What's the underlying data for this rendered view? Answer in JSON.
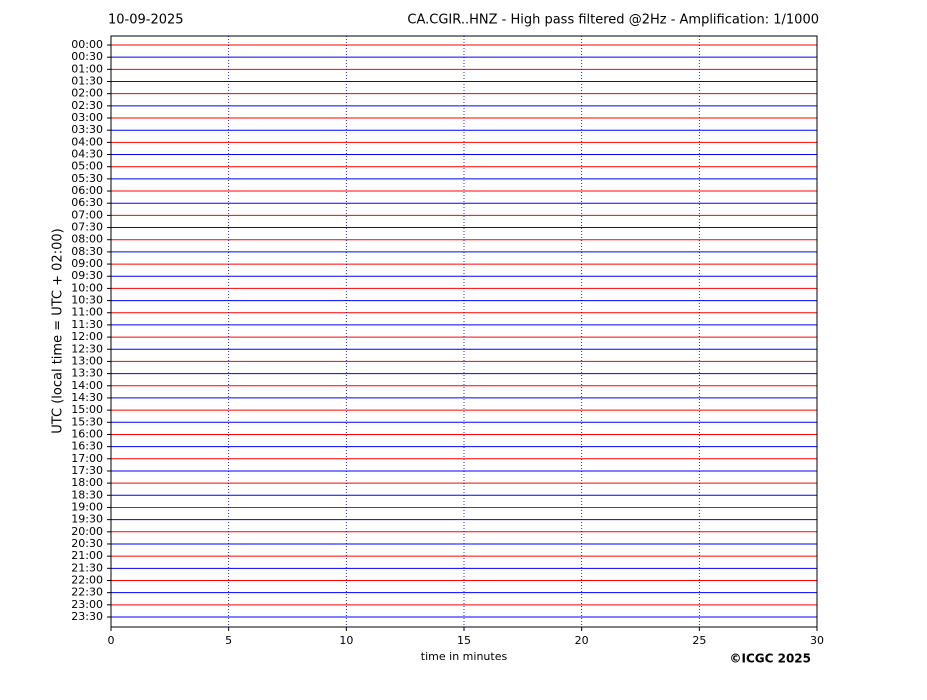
{
  "chart_data": {
    "type": "helicorder",
    "date": "10-09-2025",
    "title": "CA.CGIR..HNZ - High pass filtered @2Hz - Amplification: 1/1000",
    "ylabel": "UTC (local time = UTC + 02:00)",
    "xlabel": "time in minutes",
    "categories": [
      "00:00",
      "00:30",
      "01:00",
      "01:30",
      "02:00",
      "02:30",
      "03:00",
      "03:30",
      "04:00",
      "04:30",
      "05:00",
      "05:30",
      "06:00",
      "06:30",
      "07:00",
      "07:30",
      "08:00",
      "08:30",
      "09:00",
      "09:30",
      "10:00",
      "10:30",
      "11:00",
      "11:30",
      "12:00",
      "12:30",
      "13:00",
      "13:30",
      "14:00",
      "14:30",
      "15:00",
      "15:30",
      "16:00",
      "16:30",
      "17:00",
      "17:30",
      "18:00",
      "18:30",
      "19:00",
      "19:30",
      "20:00",
      "20:30",
      "21:00",
      "21:30",
      "22:00",
      "22:30",
      "23:00",
      "23:30"
    ],
    "colors": [
      "#ff0000",
      "#0000ff"
    ],
    "xlim": [
      0,
      30
    ],
    "xticks": [
      0,
      5,
      10,
      15,
      20,
      25,
      30
    ],
    "grid": true
  },
  "footer": {
    "copyright": "©ICGC 2025"
  }
}
